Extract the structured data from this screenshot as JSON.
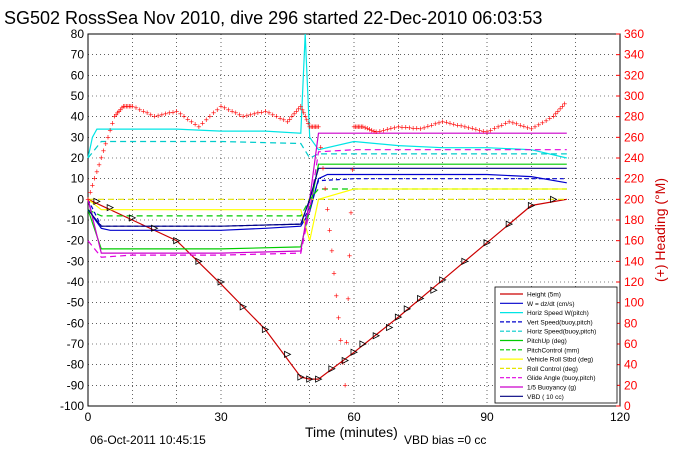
{
  "title": "SG502 RossSea Nov 2010, dive 296 started 22-Dec-2010 06:03:53",
  "footer": {
    "timestamp": "06-Oct-2011 10:45:15",
    "vbd_bias": "VBD bias =0 cc"
  },
  "colors": {
    "right_axis": "#ff0000",
    "height": "#cc0000",
    "vert_speed_w": "#0000cc",
    "horiz_speed_w": "#00e5e5",
    "vert_speed_buoy": "#0000cc",
    "horiz_speed_buoy": "#00cccc",
    "pitch_up": "#00cc00",
    "pitch_control": "#00cc00",
    "vehicle_roll": "#ffff00",
    "roll_control": "#e5e500",
    "glide_angle": "#e000e0",
    "buoyancy": "#cc00cc",
    "vbd": "#000080",
    "heading": "#ff0000"
  },
  "chart_data": {
    "type": "line",
    "title": "SG502 RossSea Nov 2010, dive 296 started 22-Dec-2010 06:03:53",
    "xlabel": "Time (minutes)",
    "ylabel": "",
    "ylabel_right": "(+) Heading (°M)",
    "xlim": [
      0,
      120
    ],
    "ylim": [
      -100,
      80
    ],
    "ylim_right": [
      0,
      360
    ],
    "xticks": [
      "0",
      "30",
      "60",
      "90",
      "120"
    ],
    "xtick_values": [
      0,
      30,
      60,
      90,
      120
    ],
    "yticks": [
      "80",
      "70",
      "60",
      "50",
      "40",
      "30",
      "20",
      "10",
      "0",
      "-10",
      "-20",
      "-30",
      "-40",
      "-50",
      "-60",
      "-70",
      "-80",
      "-90",
      "-100"
    ],
    "ytick_values": [
      80,
      70,
      60,
      50,
      40,
      30,
      20,
      10,
      0,
      -10,
      -20,
      -30,
      -40,
      -50,
      -60,
      -70,
      -80,
      -90,
      -100
    ],
    "yticks_right": [
      "360",
      "340",
      "320",
      "300",
      "280",
      "260",
      "240",
      "220",
      "200",
      "180",
      "160",
      "140",
      "120",
      "100",
      "80",
      "60",
      "40",
      "20",
      "0"
    ],
    "ytick_right_values": [
      360,
      340,
      320,
      300,
      280,
      260,
      240,
      220,
      200,
      180,
      160,
      140,
      120,
      100,
      80,
      60,
      40,
      20,
      0
    ],
    "grid": true,
    "legend_position": "bottom-right",
    "legend": [
      "Height (5m)",
      "W = dz/dt (cm/s)",
      "Horiz Speed W(pitch)",
      "Vert Speed(buoy,pitch)",
      "Horiz Speed(buoy,pitch)",
      "PitchUp (deg)",
      "PitchControl (mm)",
      "Vehicle Roll Stbd (deg)",
      "Roll Control (deg)",
      "Glide Angle (buoy,pitch)",
      "1/5 Buoyancy (g)",
      "VBD ( 10 cc)"
    ],
    "series": [
      {
        "name": "Height (5m)",
        "x": [
          0,
          10,
          20,
          30,
          40,
          48,
          50,
          52,
          60,
          70,
          80,
          90,
          100,
          108
        ],
        "y": [
          0,
          -10,
          -20,
          -41,
          -63,
          -86,
          -87,
          -87,
          -74,
          -57,
          -39,
          -21,
          -3,
          0
        ]
      },
      {
        "name": "W = dz/dt (cm/s)",
        "x": [
          0,
          1,
          3,
          5,
          10,
          20,
          30,
          40,
          48,
          50,
          52,
          54,
          60,
          70,
          80,
          90,
          100,
          108
        ],
        "y": [
          0,
          -8,
          -14,
          -15,
          -15,
          -15,
          -15,
          -14,
          -13,
          -6,
          10,
          12,
          12,
          12,
          12,
          12,
          11,
          8
        ]
      },
      {
        "name": "Horiz Speed W(pitch)",
        "x": [
          0,
          1,
          2,
          3,
          10,
          20,
          30,
          40,
          48,
          49,
          50,
          52,
          60,
          70,
          80,
          90,
          100,
          108
        ],
        "y": [
          20,
          30,
          34,
          34,
          34,
          34,
          33,
          33,
          32,
          80,
          30,
          24,
          28,
          26,
          25,
          25,
          24,
          20
        ]
      },
      {
        "name": "Vert Speed(buoy,pitch)",
        "x": [
          0,
          3,
          10,
          30,
          48,
          50,
          52,
          60,
          80,
          108
        ],
        "y": [
          0,
          -13,
          -13,
          -13,
          -12,
          -4,
          9,
          10,
          10,
          10
        ]
      },
      {
        "name": "Horiz Speed(buoy,pitch)",
        "x": [
          0,
          3,
          10,
          30,
          48,
          50,
          52,
          60,
          80,
          108
        ],
        "y": [
          20,
          28,
          28,
          28,
          27,
          20,
          22,
          22,
          22,
          22
        ]
      },
      {
        "name": "PitchUp (deg)",
        "x": [
          0,
          3,
          10,
          30,
          48,
          50,
          52,
          60,
          80,
          108
        ],
        "y": [
          -5,
          -24,
          -24,
          -24,
          -23,
          -5,
          17,
          17,
          17,
          17
        ]
      },
      {
        "name": "PitchControl (mm)",
        "x": [
          0,
          3,
          10,
          30,
          48,
          50,
          52,
          60,
          80,
          108
        ],
        "y": [
          -5,
          -8,
          -8,
          -8,
          -8,
          0,
          5,
          5,
          5,
          5
        ]
      },
      {
        "name": "Vehicle Roll Stbd (deg)",
        "x": [
          0,
          3,
          10,
          30,
          48,
          50,
          52,
          60,
          80,
          108
        ],
        "y": [
          0,
          -5,
          -5,
          -5,
          -5,
          -20,
          0,
          5,
          5,
          5
        ]
      },
      {
        "name": "Roll Control (deg)",
        "x": [
          0,
          3,
          10,
          30,
          48,
          50,
          52,
          60,
          80,
          108
        ],
        "y": [
          0,
          0,
          0,
          0,
          0,
          0,
          0,
          0,
          0,
          0
        ]
      },
      {
        "name": "Glide Angle (buoy,pitch)",
        "x": [
          0,
          3,
          10,
          30,
          48,
          50,
          52,
          60,
          80,
          108
        ],
        "y": [
          -20,
          -28,
          -27,
          -27,
          -26,
          -5,
          23,
          24,
          24,
          24
        ]
      },
      {
        "name": "1/5 Buoyancy (g)",
        "x": [
          0,
          3,
          10,
          30,
          48,
          50,
          52,
          60,
          80,
          108
        ],
        "y": [
          0,
          -26,
          -26,
          -26,
          -25,
          0,
          32,
          32,
          32,
          32
        ]
      },
      {
        "name": "VBD ( 10 cc)",
        "x": [
          0,
          3,
          10,
          30,
          48,
          50,
          52,
          60,
          80,
          108
        ],
        "y": [
          -5,
          -13,
          -13,
          -13,
          -12,
          0,
          15,
          15,
          15,
          15
        ]
      }
    ],
    "heading": {
      "name": "(+) Heading (°M)",
      "x": [
        0,
        3,
        6,
        8,
        10,
        15,
        20,
        25,
        30,
        35,
        40,
        45,
        48,
        50,
        52,
        55,
        58,
        60,
        62,
        65,
        70,
        75,
        80,
        85,
        90,
        95,
        100,
        105,
        108
      ],
      "y": [
        200,
        240,
        280,
        290,
        290,
        280,
        285,
        270,
        290,
        280,
        285,
        275,
        290,
        270,
        270,
        150,
        20,
        270,
        270,
        265,
        270,
        268,
        275,
        270,
        265,
        275,
        268,
        280,
        295
      ]
    },
    "height_markers": {
      "x": [
        2,
        5,
        10,
        15,
        20,
        25,
        30,
        35,
        40,
        45,
        48,
        50,
        52,
        55,
        58,
        60,
        62,
        65,
        68,
        70,
        72,
        75,
        78,
        80,
        85,
        90,
        95,
        100,
        105
      ],
      "y": [
        -1,
        -4,
        -9,
        -14,
        -20,
        -30,
        -40,
        -52,
        -63,
        -75,
        -86,
        -87,
        -87,
        -82,
        -78,
        -74,
        -70,
        -66,
        -62,
        -57,
        -53,
        -48,
        -44,
        -39,
        -30,
        -21,
        -12,
        -3,
        0
      ]
    }
  }
}
